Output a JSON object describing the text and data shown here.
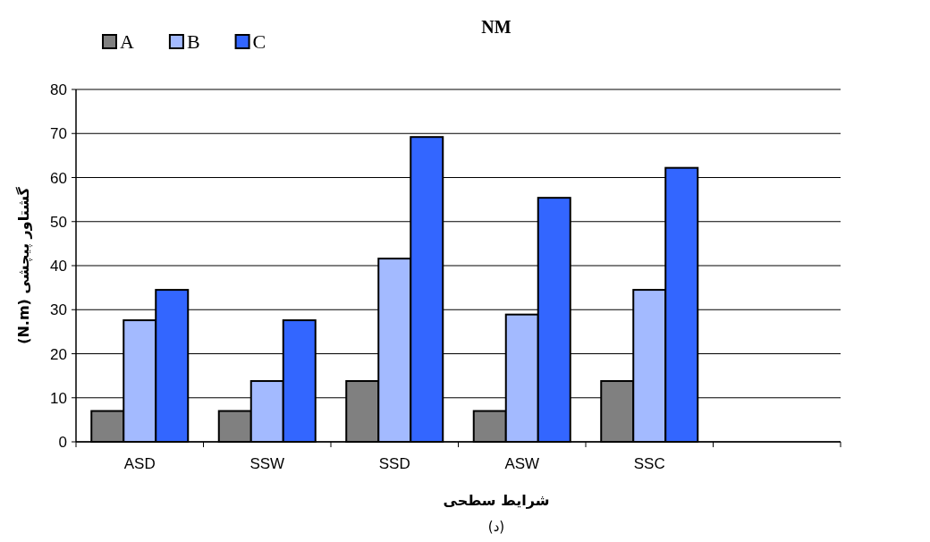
{
  "chart_data": {
    "type": "bar",
    "title": "NM",
    "xlabel": "شرایط سطحی",
    "ylabel": "گشتاور پیچشی (N.m)",
    "annotations": [
      "(د)"
    ],
    "categories": [
      "ASD",
      "SSW",
      "SSD",
      "ASW",
      "SSC",
      null
    ],
    "series": [
      {
        "name": "A",
        "color": "#808080",
        "values": [
          7,
          7,
          13.8,
          7,
          13.8,
          null
        ]
      },
      {
        "name": "B",
        "color": "#a3baff",
        "values": [
          27.6,
          13.8,
          41.6,
          28.9,
          34.5,
          null
        ]
      },
      {
        "name": "C",
        "color": "#3366ff",
        "values": [
          34.5,
          27.6,
          69.2,
          55.4,
          62.2,
          null
        ]
      }
    ],
    "ylim": [
      0,
      80
    ],
    "yticks": [
      0,
      10,
      20,
      30,
      40,
      50,
      60,
      70,
      80
    ],
    "grid": "y",
    "legend": "top left"
  }
}
